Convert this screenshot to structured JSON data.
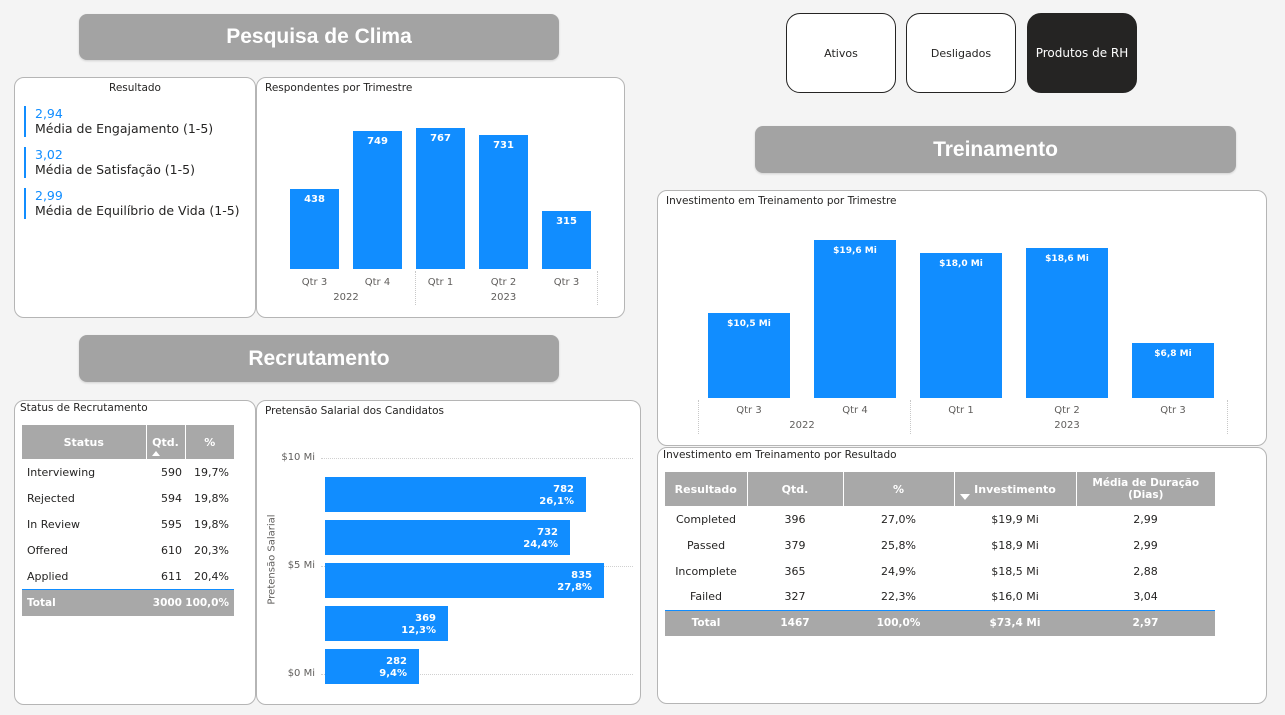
{
  "banners": {
    "clima": "Pesquisa de Clima",
    "recrutamento": "Recrutamento",
    "treinamento": "Treinamento"
  },
  "nav": [
    {
      "label": "Ativos",
      "active": false
    },
    {
      "label": "Desligados",
      "active": false
    },
    {
      "label": "Produtos de RH",
      "active": true
    }
  ],
  "resultado": {
    "title": "Resultado",
    "kpis": [
      {
        "value": "2,94",
        "label": "Média de Engajamento (1-5)"
      },
      {
        "value": "3,02",
        "label": "Média de Satisfação (1-5)"
      },
      {
        "value": "2,99",
        "label": "Média de Equilíbrio de Vida (1-5)"
      }
    ]
  },
  "chart_data": [
    {
      "id": "respondentes",
      "type": "bar",
      "title": "Respondentes por Trimestre",
      "categories": [
        "Qtr 3",
        "Qtr 4",
        "Qtr 1",
        "Qtr 2",
        "Qtr 3"
      ],
      "groups": [
        {
          "label": "2022",
          "span": [
            0,
            1
          ]
        },
        {
          "label": "2023",
          "span": [
            2,
            4
          ]
        }
      ],
      "values": [
        438,
        749,
        767,
        731,
        315
      ],
      "data_labels": [
        "438",
        "749",
        "767",
        "731",
        "315"
      ],
      "ylim": [
        0,
        800
      ]
    },
    {
      "id": "investimento_trimestre",
      "type": "bar",
      "title": "Investimento em Treinamento por Trimestre",
      "categories": [
        "Qtr 3",
        "Qtr 4",
        "Qtr 1",
        "Qtr 2",
        "Qtr 3"
      ],
      "groups": [
        {
          "label": "2022",
          "span": [
            0,
            1
          ]
        },
        {
          "label": "2023",
          "span": [
            2,
            4
          ]
        }
      ],
      "values": [
        10.5,
        19.6,
        18.0,
        18.6,
        6.8
      ],
      "data_labels": [
        "$10,5 Mi",
        "$19,6 Mi",
        "$18,0 Mi",
        "$18,6 Mi",
        "$6,8 Mi"
      ],
      "ylim": [
        0,
        20.5
      ]
    },
    {
      "id": "pretensao",
      "type": "bar",
      "orientation": "horizontal",
      "title": "Pretensão Salarial dos Candidatos",
      "ylabel": "Pretensão Salarial",
      "y_ticks": [
        "$10 Mi",
        "$5 Mi",
        "$0 Mi"
      ],
      "values": [
        782,
        732,
        835,
        369,
        282
      ],
      "percents": [
        "26,1%",
        "24,4%",
        "27,8%",
        "12,3%",
        "9,4%"
      ],
      "xlim": [
        0,
        835
      ]
    }
  ],
  "status_recrutamento": {
    "title": "Status de Recrutamento",
    "headers": [
      "Status",
      "Qtd.",
      "%"
    ],
    "rows": [
      [
        "Interviewing",
        "590",
        "19,7%"
      ],
      [
        "Rejected",
        "594",
        "19,8%"
      ],
      [
        "In Review",
        "595",
        "19,8%"
      ],
      [
        "Offered",
        "610",
        "20,3%"
      ],
      [
        "Applied",
        "611",
        "20,4%"
      ]
    ],
    "total": [
      "Total",
      "3000",
      "100,0%"
    ]
  },
  "investimento_resultado": {
    "title": "Investimento em Treinamento por Resultado",
    "headers": [
      "Resultado",
      "Qtd.",
      "%",
      "Investimento",
      "Média de Duração (Dias)"
    ],
    "rows": [
      [
        "Completed",
        "396",
        "27,0%",
        "$19,9 Mi",
        "2,99"
      ],
      [
        "Passed",
        "379",
        "25,8%",
        "$18,9 Mi",
        "2,99"
      ],
      [
        "Incomplete",
        "365",
        "24,9%",
        "$18,5 Mi",
        "2,88"
      ],
      [
        "Failed",
        "327",
        "22,3%",
        "$16,0 Mi",
        "3,04"
      ]
    ],
    "total": [
      "Total",
      "1467",
      "100,0%",
      "$73,4 Mi",
      "2,97"
    ]
  },
  "colors": {
    "accent": "#118dff",
    "header_gray": "#a8a8a8",
    "banner_gray": "#a3a3a3",
    "dark": "#252423"
  }
}
